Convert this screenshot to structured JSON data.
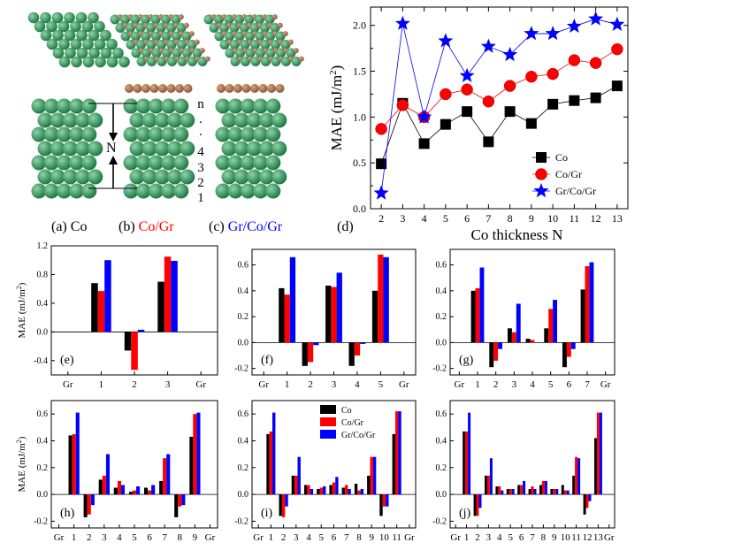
{
  "structures": {
    "co_label_prefix": "(a) ",
    "co_label": "Co",
    "cogr_label_prefix": "(b) ",
    "cogr_label": "Co/Gr",
    "grcogr_label_prefix": "(c) ",
    "grcogr_label": "Gr/Co/Gr",
    "layer_labels": [
      "n",
      "·",
      "·",
      "4",
      "3",
      "2",
      "1"
    ],
    "N_label": "N",
    "colors": {
      "co_atom": "#1f7a45",
      "c_atom": "#8b5a3c",
      "co_text": "#000000",
      "cogr_text": "#ff0000",
      "grcogr_text": "#0000ff"
    }
  },
  "chart_data": [
    {
      "id": "d",
      "type": "line",
      "panel_label": "(d)",
      "xlabel": "Co thickness N",
      "ylabel_main": "MAE (mJ/m",
      "ylabel_sup": "2",
      "ylabel_end": ")",
      "xlim": [
        1.5,
        13.5
      ],
      "ylim": [
        0,
        2.2
      ],
      "xticks": [
        2,
        3,
        4,
        5,
        6,
        7,
        8,
        9,
        10,
        11,
        12,
        13
      ],
      "yticks": [
        "0.0",
        "0.5",
        "1.0",
        "1.5",
        "2.0"
      ],
      "x": [
        2,
        3,
        4,
        5,
        6,
        7,
        8,
        9,
        10,
        11,
        12,
        13
      ],
      "series": [
        {
          "name": "Co",
          "color": "#000000",
          "marker": "square",
          "values": [
            0.49,
            1.15,
            0.71,
            0.92,
            1.06,
            0.73,
            1.06,
            0.93,
            1.14,
            1.18,
            1.21,
            1.34
          ]
        },
        {
          "name": "Co/Gr",
          "color": "#ff0000",
          "marker": "circle",
          "values": [
            0.87,
            1.13,
            1.0,
            1.25,
            1.3,
            1.17,
            1.34,
            1.44,
            1.47,
            1.62,
            1.59,
            1.74
          ]
        },
        {
          "name": "Gr/Co/Gr",
          "color": "#0000ff",
          "marker": "star",
          "values": [
            0.17,
            2.02,
            1.0,
            1.83,
            1.45,
            1.77,
            1.68,
            1.91,
            1.91,
            1.99,
            2.07,
            2.01
          ]
        }
      ],
      "legend": "bottom-right"
    },
    {
      "id": "e",
      "type": "bar",
      "panel_label": "(e)",
      "ylabel": "MAE (mJ/m",
      "ylabel_sup": "2",
      "ylabel_end": ")",
      "ylim": [
        -0.6,
        1.2
      ],
      "yticks": [
        -0.4,
        0.0,
        0.4,
        0.8,
        1.2
      ],
      "ytick_labels": [
        "-0.4",
        "0.0",
        "0.4",
        "0.8",
        "1.2"
      ],
      "categories": [
        "Gr",
        "1",
        "2",
        "3",
        "Gr"
      ],
      "series": [
        {
          "name": "Co",
          "color": "#000000",
          "values": [
            null,
            0.68,
            -0.26,
            0.7,
            null
          ]
        },
        {
          "name": "Co/Gr",
          "color": "#ff0000",
          "values": [
            null,
            0.57,
            -0.53,
            1.05,
            null
          ]
        },
        {
          "name": "Gr/Co/Gr",
          "color": "#0000ff",
          "values": [
            null,
            1.0,
            0.03,
            0.99,
            null
          ]
        }
      ]
    },
    {
      "id": "f",
      "type": "bar",
      "panel_label": "(f)",
      "ylim": [
        -0.25,
        0.72
      ],
      "yticks": [
        -0.2,
        0.0,
        0.2,
        0.4,
        0.6
      ],
      "ytick_labels": [
        "-0.2",
        "0.0",
        "0.2",
        "0.4",
        "0.6"
      ],
      "categories": [
        "Gr",
        "1",
        "2",
        "3",
        "4",
        "5",
        "Gr"
      ],
      "series": [
        {
          "name": "Co",
          "color": "#000000",
          "values": [
            null,
            0.42,
            -0.18,
            0.44,
            -0.18,
            0.4,
            null
          ]
        },
        {
          "name": "Co/Gr",
          "color": "#ff0000",
          "values": [
            null,
            0.37,
            -0.15,
            0.43,
            -0.1,
            0.68,
            null
          ]
        },
        {
          "name": "Gr/Co/Gr",
          "color": "#0000ff",
          "values": [
            null,
            0.66,
            -0.02,
            0.54,
            -0.01,
            0.66,
            null
          ]
        }
      ]
    },
    {
      "id": "g",
      "type": "bar",
      "panel_label": "(g)",
      "ylim": [
        -0.25,
        0.72
      ],
      "yticks": [
        -0.2,
        0.0,
        0.2,
        0.4,
        0.6
      ],
      "ytick_labels": [
        "-0.2",
        "0.0",
        "0.2",
        "0.4",
        "0.6"
      ],
      "categories": [
        "Gr",
        "1",
        "2",
        "3",
        "4",
        "5",
        "6",
        "7",
        "Gr"
      ],
      "series": [
        {
          "name": "Co",
          "color": "#000000",
          "values": [
            null,
            0.4,
            -0.19,
            0.11,
            0.03,
            0.11,
            -0.19,
            0.41,
            null
          ]
        },
        {
          "name": "Co/Gr",
          "color": "#ff0000",
          "values": [
            null,
            0.42,
            -0.14,
            0.08,
            0.02,
            0.26,
            -0.11,
            0.59,
            null
          ]
        },
        {
          "name": "Gr/Co/Gr",
          "color": "#0000ff",
          "values": [
            null,
            0.58,
            -0.05,
            0.3,
            null,
            0.33,
            -0.05,
            0.62,
            null
          ]
        }
      ]
    },
    {
      "id": "h",
      "type": "bar",
      "panel_label": "(h)",
      "ylabel": "MAE (mJ/m",
      "ylabel_sup": "2",
      "ylabel_end": ")",
      "ylim": [
        -0.25,
        0.7
      ],
      "yticks": [
        -0.2,
        0.0,
        0.2,
        0.4,
        0.6
      ],
      "ytick_labels": [
        "-0.2",
        "0.0",
        "0.2",
        "0.4",
        "0.6"
      ],
      "categories": [
        "Gr",
        "1",
        "2",
        "3",
        "4",
        "5",
        "6",
        "7",
        "8",
        "9",
        "Gr"
      ],
      "series": [
        {
          "name": "Co",
          "color": "#000000",
          "values": [
            null,
            0.44,
            -0.17,
            0.11,
            0.05,
            0.02,
            0.05,
            0.1,
            -0.17,
            0.43,
            null
          ]
        },
        {
          "name": "Co/Gr",
          "color": "#ff0000",
          "values": [
            null,
            0.45,
            -0.15,
            0.14,
            0.1,
            0.03,
            0.03,
            0.27,
            -0.09,
            0.6,
            null
          ]
        },
        {
          "name": "Gr/Co/Gr",
          "color": "#0000ff",
          "values": [
            null,
            0.61,
            -0.08,
            0.3,
            0.07,
            0.06,
            0.07,
            0.3,
            -0.08,
            0.61,
            null
          ]
        }
      ]
    },
    {
      "id": "i",
      "type": "bar",
      "panel_label": "(i)",
      "ylim": [
        -0.25,
        0.7
      ],
      "yticks": [
        -0.2,
        0.0,
        0.2,
        0.4,
        0.6
      ],
      "ytick_labels": [
        "-0.2",
        "0.0",
        "0.2",
        "0.4",
        "0.6"
      ],
      "categories": [
        "Gr",
        "1",
        "2",
        "3",
        "4",
        "5",
        "6",
        "7",
        "8",
        "9",
        "10",
        "11",
        "Gr"
      ],
      "series": [
        {
          "name": "Co",
          "color": "#000000",
          "values": [
            null,
            0.45,
            -0.16,
            0.14,
            0.07,
            0.04,
            0.07,
            0.05,
            0.08,
            0.14,
            -0.16,
            0.45,
            null
          ]
        },
        {
          "name": "Co/Gr",
          "color": "#ff0000",
          "values": [
            null,
            0.47,
            -0.17,
            0.14,
            0.07,
            0.05,
            0.09,
            0.07,
            0.03,
            0.28,
            -0.09,
            0.62,
            null
          ]
        },
        {
          "name": "Gr/Co/Gr",
          "color": "#0000ff",
          "values": [
            null,
            0.61,
            -0.09,
            0.28,
            0.04,
            0.06,
            0.13,
            0.04,
            0.04,
            0.28,
            -0.09,
            0.62,
            null
          ]
        }
      ],
      "legend": "top-center"
    },
    {
      "id": "j",
      "type": "bar",
      "panel_label": "(j)",
      "ylim": [
        -0.25,
        0.7
      ],
      "yticks": [
        -0.2,
        0.0,
        0.2,
        0.4,
        0.6
      ],
      "ytick_labels": [
        "-0.2",
        "0.0",
        "0.2",
        "0.4",
        "0.6"
      ],
      "categories": [
        "Gr",
        "1",
        "2",
        "3",
        "4",
        "5",
        "6",
        "7",
        "8",
        "9",
        "10",
        "11",
        "12",
        "13",
        "Gr"
      ],
      "series": [
        {
          "name": "Co",
          "color": "#000000",
          "values": [
            null,
            0.47,
            -0.16,
            0.14,
            0.06,
            0.04,
            0.07,
            0.04,
            0.07,
            0.04,
            0.07,
            0.14,
            -0.15,
            0.42,
            null
          ]
        },
        {
          "name": "Co/Gr",
          "color": "#ff0000",
          "values": [
            null,
            0.47,
            -0.16,
            0.14,
            0.06,
            0.04,
            0.07,
            0.06,
            0.1,
            0.04,
            0.03,
            0.28,
            -0.1,
            0.61,
            null
          ]
        },
        {
          "name": "Gr/Co/Gr",
          "color": "#0000ff",
          "values": [
            null,
            0.61,
            -0.1,
            0.27,
            0.03,
            0.04,
            0.1,
            0.04,
            0.1,
            0.04,
            0.03,
            0.27,
            -0.05,
            0.61,
            null
          ]
        }
      ]
    }
  ]
}
